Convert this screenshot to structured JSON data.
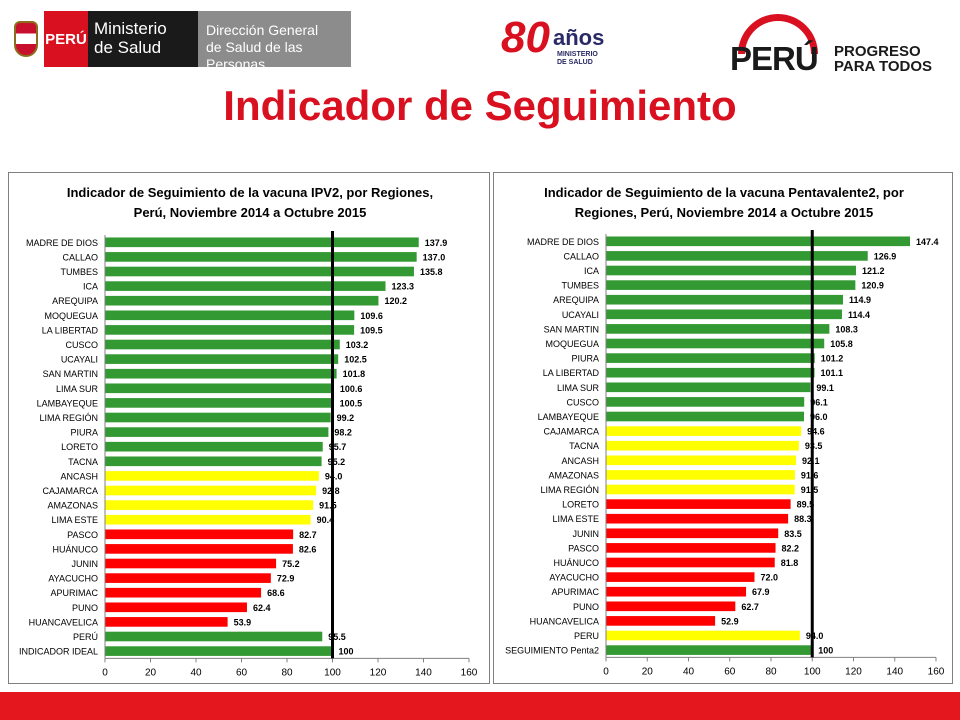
{
  "header": {
    "minsa": {
      "peru": "PERÚ",
      "ministerio_line1": "Ministerio",
      "ministerio_line2": "de Salud",
      "direccion_line1": "Dirección General",
      "direccion_line2": "de Salud de las Personas"
    },
    "aniversario": {
      "number": "80",
      "word": "años",
      "sub1": "MINISTERIO",
      "sub2": "DE SALUD"
    },
    "peru_progreso": {
      "word": "PERÚ",
      "slogan1": "PROGRESO",
      "slogan2": "PARA TODOS"
    },
    "title": "Indicador de Seguimiento"
  },
  "colors": {
    "green": "#339933",
    "yellow": "#ffff00",
    "red": "#ff0000",
    "title_red": "#d8101f",
    "footer": "#e4161e"
  },
  "chart_data": [
    {
      "type": "bar",
      "orientation": "horizontal",
      "title_line1": "Indicador de Seguimiento de la vacuna IPV2, por Regiones,",
      "title_line2": "Perú, Noviembre 2014 a Octubre 2015",
      "xlim": [
        0,
        160
      ],
      "xticks": [
        0,
        20,
        40,
        60,
        80,
        100,
        120,
        140,
        160
      ],
      "reference_line": 100,
      "categories": [
        "MADRE DE DIOS",
        "CALLAO",
        "TUMBES",
        "ICA",
        "AREQUIPA",
        "MOQUEGUA",
        "LA LIBERTAD",
        "CUSCO",
        "UCAYALI",
        "SAN MARTIN",
        "LIMA SUR",
        "LAMBAYEQUE",
        "LIMA REGIÓN",
        "PIURA",
        "LORETO",
        "TACNA",
        "ANCASH",
        "CAJAMARCA",
        "AMAZONAS",
        "LIMA ESTE",
        "PASCO",
        "HUÁNUCO",
        "JUNIN",
        "AYACUCHO",
        "APURIMAC",
        "PUNO",
        "HUANCAVELICA",
        "PERÚ",
        "INDICADOR IDEAL"
      ],
      "values": [
        137.9,
        137.0,
        135.8,
        123.3,
        120.2,
        109.6,
        109.5,
        103.2,
        102.5,
        101.8,
        100.6,
        100.5,
        99.2,
        98.2,
        95.7,
        95.2,
        94.0,
        92.8,
        91.5,
        90.4,
        82.7,
        82.6,
        75.2,
        72.9,
        68.6,
        62.4,
        53.9,
        95.5,
        100
      ],
      "labels": [
        "137.9",
        "137.0",
        "135.8",
        "123.3",
        "120.2",
        "109.6",
        "109.5",
        "103.2",
        "102.5",
        "101.8",
        "100.6",
        "100.5",
        "99.2",
        "98.2",
        "95.7",
        "95.2",
        "94.0",
        "92.8",
        "91.5",
        "90.4",
        "82.7",
        "82.6",
        "75.2",
        "72.9",
        "68.6",
        "62.4",
        "53.9",
        "95.5",
        "100"
      ],
      "colors": [
        "green",
        "green",
        "green",
        "green",
        "green",
        "green",
        "green",
        "green",
        "green",
        "green",
        "green",
        "green",
        "green",
        "green",
        "green",
        "green",
        "yellow",
        "yellow",
        "yellow",
        "yellow",
        "red",
        "red",
        "red",
        "red",
        "red",
        "red",
        "red",
        "green",
        "green"
      ]
    },
    {
      "type": "bar",
      "orientation": "horizontal",
      "title_line1": "Indicador de Seguimiento de la vacuna Pentavalente2, por",
      "title_line2": "Regiones, Perú, Noviembre 2014 a Octubre 2015",
      "xlim": [
        0,
        160
      ],
      "xticks": [
        0,
        20,
        40,
        60,
        80,
        100,
        120,
        140,
        160
      ],
      "reference_line": 100,
      "categories": [
        "MADRE DE DIOS",
        "CALLAO",
        "ICA",
        "TUMBES",
        "AREQUIPA",
        "UCAYALI",
        "SAN MARTIN",
        "MOQUEGUA",
        "PIURA",
        "LA LIBERTAD",
        "LIMA SUR",
        "CUSCO",
        "LAMBAYEQUE",
        "CAJAMARCA",
        "TACNA",
        "ANCASH",
        "AMAZONAS",
        "LIMA REGIÓN",
        "LORETO",
        "LIMA ESTE",
        "JUNIN",
        "PASCO",
        "HUÁNUCO",
        "AYACUCHO",
        "APURIMAC",
        "PUNO",
        "HUANCAVELICA",
        "PERU",
        "SEGUIMIENTO Penta2"
      ],
      "values": [
        147.4,
        126.9,
        121.2,
        120.9,
        114.9,
        114.4,
        108.3,
        105.8,
        101.2,
        101.1,
        99.1,
        96.1,
        96.0,
        94.6,
        93.5,
        92.1,
        91.6,
        91.5,
        89.5,
        88.3,
        83.5,
        82.2,
        81.8,
        72.0,
        67.9,
        62.7,
        52.9,
        94.0,
        100
      ],
      "labels": [
        "147.4",
        "126.9",
        "121.2",
        "120.9",
        "114.9",
        "114.4",
        "108.3",
        "105.8",
        "101.2",
        "101.1",
        "99.1",
        "96.1",
        "96.0",
        "94.6",
        "93.5",
        "92.1",
        "91.6",
        "91.5",
        "89.5",
        "88.3",
        "83.5",
        "82.2",
        "81.8",
        "72.0",
        "67.9",
        "62.7",
        "52.9",
        "94.0",
        "100"
      ],
      "colors": [
        "green",
        "green",
        "green",
        "green",
        "green",
        "green",
        "green",
        "green",
        "green",
        "green",
        "green",
        "green",
        "green",
        "yellow",
        "yellow",
        "yellow",
        "yellow",
        "yellow",
        "red",
        "red",
        "red",
        "red",
        "red",
        "red",
        "red",
        "red",
        "red",
        "yellow",
        "green"
      ]
    }
  ]
}
